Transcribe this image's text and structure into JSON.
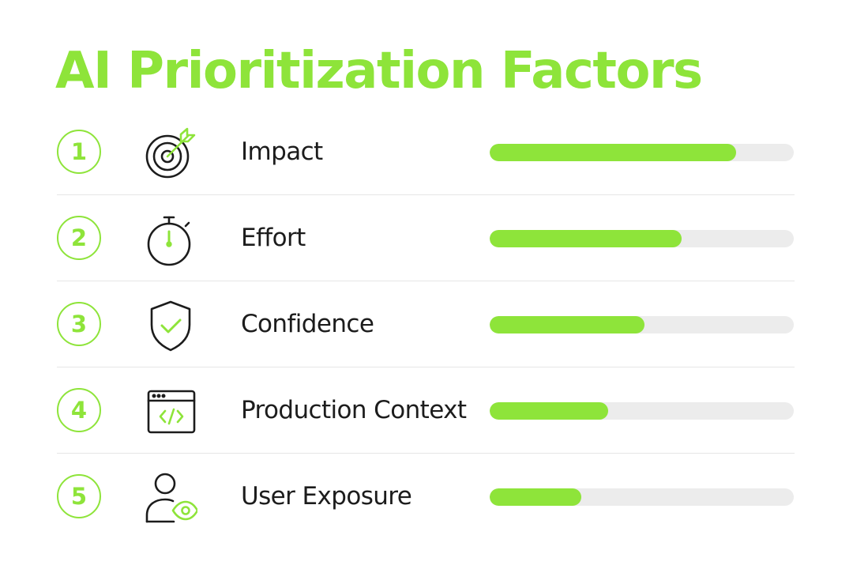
{
  "title": "AI Prioritization Factors",
  "colors": {
    "accent": "#8ee43a",
    "track": "#ececec",
    "text": "#1c1c1c",
    "divider": "#e6e6e6"
  },
  "factors": [
    {
      "number": "1",
      "label": "Impact",
      "icon": "target-icon",
      "progress": 0.81
    },
    {
      "number": "2",
      "label": "Effort",
      "icon": "stopwatch-icon",
      "progress": 0.63
    },
    {
      "number": "3",
      "label": "Confidence",
      "icon": "shield-check-icon",
      "progress": 0.51
    },
    {
      "number": "4",
      "label": "Production Context",
      "icon": "code-window-icon",
      "progress": 0.39
    },
    {
      "number": "5",
      "label": "User Exposure",
      "icon": "user-eye-icon",
      "progress": 0.3
    }
  ]
}
